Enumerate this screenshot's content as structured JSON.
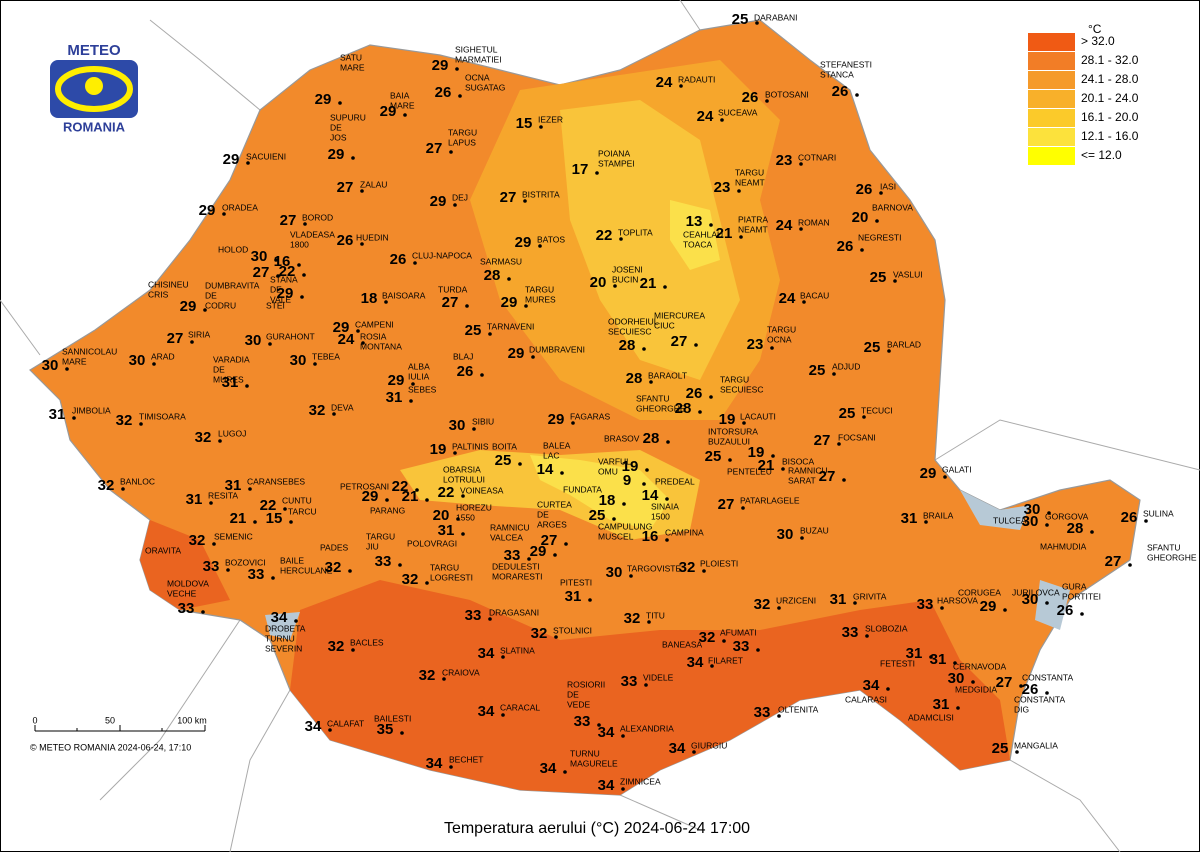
{
  "title": "Temperatura aerului (°C) 2024-06-24 17:00",
  "logo": {
    "top": "METEO",
    "bottom": "ROMANIA"
  },
  "copyright": "© METEO ROMANIA 2024-06-24, 17:10",
  "scale_bar": {
    "labels": [
      "0",
      "50",
      "100 km"
    ]
  },
  "legend": {
    "title": "°C",
    "items": [
      {
        "label": "> 32.0",
        "color": "#f05a14"
      },
      {
        "label": "28.1 - 32.0",
        "color": "#f27d26"
      },
      {
        "label": "24.1 - 28.0",
        "color": "#f59a2a"
      },
      {
        "label": "20.1 - 24.0",
        "color": "#f8b02a"
      },
      {
        "label": "16.1 - 20.0",
        "color": "#fbca2a"
      },
      {
        "label": "12.1 - 16.0",
        "color": "#fce23c"
      },
      {
        "label": "<= 12.0",
        "color": "#ffff00"
      }
    ]
  },
  "stations": [
    {
      "name": [
        "DARABANI"
      ],
      "value": 25
    },
    {
      "name": [
        "STEFANESTI",
        "STANCA"
      ],
      "value": 26
    },
    {
      "name": [
        "RADAUTI"
      ],
      "value": 24
    },
    {
      "name": [
        "BOTOSANI"
      ],
      "value": 26
    },
    {
      "name": [
        "SUCEAVA"
      ],
      "value": 24
    },
    {
      "name": [
        "SIGHETUL",
        "MARMATIEI"
      ],
      "value": 29
    },
    {
      "name": [
        "OCNA",
        "SUGATAG"
      ],
      "value": 26
    },
    {
      "name": [
        "SATU",
        "MARE"
      ],
      "value": 29
    },
    {
      "name": [
        "BAIA",
        "MARE"
      ],
      "value": 29
    },
    {
      "name": [
        "SUPURU",
        "DE",
        "JOS"
      ],
      "value": 29
    },
    {
      "name": [
        "IEZER"
      ],
      "value": 15
    },
    {
      "name": [
        "TARGU",
        "LAPUS"
      ],
      "value": 27
    },
    {
      "name": [
        "SACUIENI"
      ],
      "value": 29
    },
    {
      "name": [
        "COTNARI"
      ],
      "value": 23
    },
    {
      "name": [
        "POIANA",
        "STAMPEI"
      ],
      "value": 17
    },
    {
      "name": [
        "TARGU",
        "NEAMT"
      ],
      "value": 23
    },
    {
      "name": [
        "IASI"
      ],
      "value": 26
    },
    {
      "name": [
        "ZALAU"
      ],
      "value": 27
    },
    {
      "name": [
        "BISTRITA"
      ],
      "value": 27
    },
    {
      "name": [
        "DEJ"
      ],
      "value": 29
    },
    {
      "name": [
        "ORADEA"
      ],
      "value": 29
    },
    {
      "name": [
        "BARNOVA"
      ],
      "value": 20
    },
    {
      "name": [
        "BOROD"
      ],
      "value": 27
    },
    {
      "name": [
        "PIATRA",
        "NEAMT"
      ],
      "value": 21
    },
    {
      "name": [
        "ROMAN"
      ],
      "value": 24
    },
    {
      "name": [
        "TOPLITA"
      ],
      "value": 22
    },
    {
      "name": [
        "CEAHLAU",
        "TOACA"
      ],
      "value": 13
    },
    {
      "name": [
        "VLADEASA",
        "1800"
      ],
      "value": 16
    },
    {
      "name": [
        "HUEDIN"
      ],
      "value": 26
    },
    {
      "name": [
        "CLUJ-NAPOCA"
      ],
      "value": 26
    },
    {
      "name": [
        "BATOS"
      ],
      "value": 29
    },
    {
      "name": [
        "NEGRESTI"
      ],
      "value": 26
    },
    {
      "name": [
        "HOLOD"
      ],
      "value": 30
    },
    {
      "name": [
        "SARMASU"
      ],
      "value": 28
    },
    {
      "name": [
        "STANA",
        "DE",
        "VALE"
      ],
      "value": 22
    },
    {
      "name": [
        "DUMBRAVITA",
        "DE",
        "CODRU"
      ],
      "value": 27
    },
    {
      "name": [
        "STEI"
      ],
      "value": 29
    },
    {
      "name": [
        "VASLUI"
      ],
      "value": 25
    },
    {
      "name": [
        "JOSENI"
      ],
      "value": 21
    },
    {
      "name": [
        "BUCIN"
      ],
      "value": 20
    },
    {
      "name": [
        "CHISINEU",
        "CRIS"
      ],
      "value": 29
    },
    {
      "name": [
        "BAISOARA"
      ],
      "value": 18
    },
    {
      "name": [
        "TURDA"
      ],
      "value": 27
    },
    {
      "name": [
        "TARGU",
        "MURES"
      ],
      "value": 29
    },
    {
      "name": [
        "BACAU"
      ],
      "value": 24
    },
    {
      "name": [
        "CAMPENI"
      ],
      "value": 29
    },
    {
      "name": [
        "ROSIA",
        "MONTANA"
      ],
      "value": 24
    },
    {
      "name": [
        "TARNAVENI"
      ],
      "value": 25
    },
    {
      "name": [
        "ODORHEIUL",
        "SECUIESC"
      ],
      "value": 28
    },
    {
      "name": [
        "MIERCUREA",
        "CIUC"
      ],
      "value": 27
    },
    {
      "name": [
        "SIRIA"
      ],
      "value": 27
    },
    {
      "name": [
        "GURAHONT"
      ],
      "value": 30
    },
    {
      "name": [
        "TARGU",
        "OCNA"
      ],
      "value": 23
    },
    {
      "name": [
        "BARLAD"
      ],
      "value": 25
    },
    {
      "name": [
        "SANNICOLAU",
        "MARE"
      ],
      "value": 30
    },
    {
      "name": [
        "ARAD"
      ],
      "value": 30
    },
    {
      "name": [
        "VARADIA",
        "DE",
        "MURES"
      ],
      "value": 31
    },
    {
      "name": [
        "TEBEA"
      ],
      "value": 30
    },
    {
      "name": [
        "DUMBRAVENI"
      ],
      "value": 29
    },
    {
      "name": [
        "BLAJ"
      ],
      "value": 26
    },
    {
      "name": [
        "ALBA",
        "IULIA"
      ],
      "value": 29
    },
    {
      "name": [
        "SEBES"
      ],
      "value": 31
    },
    {
      "name": [
        "ADJUD"
      ],
      "value": 25
    },
    {
      "name": [
        "BARAOLT"
      ],
      "value": 28
    },
    {
      "name": [
        "TARGU",
        "SECUIESC"
      ],
      "value": 26
    },
    {
      "name": [
        "JIMBOLIA"
      ],
      "value": 31
    },
    {
      "name": [
        "TIMISOARA"
      ],
      "value": 32
    },
    {
      "name": [
        "DEVA"
      ],
      "value": 32
    },
    {
      "name": [
        "SIBIU"
      ],
      "value": 30
    },
    {
      "name": [
        "FAGARAS"
      ],
      "value": 29
    },
    {
      "name": [
        "SFANTU",
        "GHEORGHE"
      ],
      "value": 28
    },
    {
      "name": [
        "LACAUTI"
      ],
      "value": 19
    },
    {
      "name": [
        "TECUCI"
      ],
      "value": 25
    },
    {
      "name": [
        "LUGOJ"
      ],
      "value": 32
    },
    {
      "name": [
        "BRASOV"
      ],
      "value": 28
    },
    {
      "name": [
        "INTORSURA",
        "BUZAULUI"
      ],
      "value": 25
    },
    {
      "name": [
        "PALTINIS"
      ],
      "value": 19
    },
    {
      "name": [
        "BOITA"
      ],
      "value": 25
    },
    {
      "name": [
        "BALEA",
        "LAC"
      ],
      "value": 14
    },
    {
      "name": [
        "PENTELEU"
      ],
      "value": 19
    },
    {
      "name": [
        "BISOCA"
      ],
      "value": 21
    },
    {
      "name": [
        "FOCSANI"
      ],
      "value": 27
    },
    {
      "name": [
        "GALATI"
      ],
      "value": 29
    },
    {
      "name": [
        "RAMNICU",
        "SARAT"
      ],
      "value": 27
    },
    {
      "name": [
        "PREDEAL"
      ],
      "value": 19
    },
    {
      "name": [
        "VARFUL",
        "OMU"
      ],
      "value": 9
    },
    {
      "name": [
        "FUNDATA"
      ],
      "value": 18
    },
    {
      "name": [
        "SINAIA",
        "1500"
      ],
      "value": 14
    },
    {
      "name": [
        "BANLOC"
      ],
      "value": 32
    },
    {
      "name": [
        "CARANSEBES"
      ],
      "value": 31
    },
    {
      "name": [
        "RESITA"
      ],
      "value": 31
    },
    {
      "name": [
        "OBARSIA",
        "LOTRULUI"
      ],
      "value": 22
    },
    {
      "name": [
        "PETROSANI"
      ],
      "value": 29
    },
    {
      "name": [
        "PARANG"
      ],
      "value": 21
    },
    {
      "name": [
        "VOINEASA"
      ],
      "value": 22
    },
    {
      "name": [
        "PATARLAGELE"
      ],
      "value": 27
    },
    {
      "name": [
        "CUNTU"
      ],
      "value": 22
    },
    {
      "name": [
        "TARCU"
      ],
      "value": 15
    },
    {
      "name": [
        "HOREZU",
        "1550"
      ],
      "value": 20
    },
    {
      "name": [
        "CAMPULUNG",
        "MUSCEL"
      ],
      "value": 25
    },
    {
      "name": [
        "CURTEA",
        "DE",
        "ARGES"
      ],
      "value": 27
    },
    {
      "name": [
        "CAMPINA"
      ],
      "value": 16
    },
    {
      "name": [
        "SEMENIC"
      ],
      "value": 21
    },
    {
      "name": [
        "ORAVITA"
      ],
      "value": 32
    },
    {
      "name": [
        "BOZOVICI"
      ],
      "value": 33
    },
    {
      "name": [
        "PADES"
      ],
      "value": 32
    },
    {
      "name": [
        "TARGU",
        "JIU"
      ],
      "value": 33
    },
    {
      "name": [
        "POLOVRAGI"
      ],
      "value": 31
    },
    {
      "name": [
        "RAMNICU",
        "VALCEA"
      ],
      "value": 33
    },
    {
      "name": [
        "DEDULESTI",
        "MORARESTI"
      ],
      "value": 29
    },
    {
      "name": [
        "BUZAU"
      ],
      "value": 30
    },
    {
      "name": [
        "BRAILA"
      ],
      "value": 31
    },
    {
      "name": [
        "TULCEA"
      ],
      "value": 30
    },
    {
      "name": [
        "GORGOVA"
      ],
      "value": 30
    },
    {
      "name": [
        "MAHMUDIA"
      ],
      "value": 28
    },
    {
      "name": [
        "SULINA"
      ],
      "value": 26
    },
    {
      "name": [
        "SFANTU",
        "GHEORGHE"
      ],
      "value": 27
    },
    {
      "name": [
        "MOLDOVA",
        "VECHE"
      ],
      "value": 33
    },
    {
      "name": [
        "BAILE",
        "HERCULANE"
      ],
      "value": 33
    },
    {
      "name": [
        "TARGU",
        "LOGRESTI"
      ],
      "value": 32
    },
    {
      "name": [
        "PITESTI"
      ],
      "value": 31
    },
    {
      "name": [
        "TARGOVISTE"
      ],
      "value": 30
    },
    {
      "name": [
        "PLOIESTI"
      ],
      "value": 32
    },
    {
      "name": [
        "DROBETA",
        "TURNU",
        "SEVERIN"
      ],
      "value": 34
    },
    {
      "name": [
        "DRAGASANI"
      ],
      "value": 33
    },
    {
      "name": [
        "TITU"
      ],
      "value": 32
    },
    {
      "name": [
        "URZICENI"
      ],
      "value": 32
    },
    {
      "name": [
        "GRIVITA"
      ],
      "value": 31
    },
    {
      "name": [
        "HARSOVA"
      ],
      "value": 33
    },
    {
      "name": [
        "CORUGEA"
      ],
      "value": 29
    },
    {
      "name": [
        "JURILOVCA"
      ],
      "value": 30
    },
    {
      "name": [
        "GURA",
        "PORTITEI"
      ],
      "value": 26
    },
    {
      "name": [
        "STOLNICI"
      ],
      "value": 32
    },
    {
      "name": [
        "AFUMATI"
      ],
      "value": 33
    },
    {
      "name": [
        "BANEASA"
      ],
      "value": 32
    },
    {
      "name": [
        "SLOBOZIA"
      ],
      "value": 33
    },
    {
      "name": [
        "BACLES"
      ],
      "value": 32
    },
    {
      "name": [
        "SLATINA"
      ],
      "value": 34
    },
    {
      "name": [
        "FILARET"
      ],
      "value": 34
    },
    {
      "name": [
        "FETESTI"
      ],
      "value": 31
    },
    {
      "name": [
        "CERNAVODA"
      ],
      "value": 31
    },
    {
      "name": [
        "CRAIOVA"
      ],
      "value": 32
    },
    {
      "name": [
        "VIDELE"
      ],
      "value": 33
    },
    {
      "name": [
        "CONSTANTA"
      ],
      "value": 27
    },
    {
      "name": [
        "CONSTANTA",
        "DIG"
      ],
      "value": 26
    },
    {
      "name": [
        "MEDGIDIA"
      ],
      "value": 30
    },
    {
      "name": [
        "CALARASI"
      ],
      "value": 34
    },
    {
      "name": [
        "ADAMCLISI"
      ],
      "value": 31
    },
    {
      "name": [
        "CARACAL"
      ],
      "value": 34
    },
    {
      "name": [
        "ROSIORII",
        "DE",
        "VEDE"
      ],
      "value": 33
    },
    {
      "name": [
        "OLTENITA"
      ],
      "value": 33
    },
    {
      "name": [
        "ALEXANDRIA"
      ],
      "value": 34
    },
    {
      "name": [
        "CALAFAT"
      ],
      "value": 34
    },
    {
      "name": [
        "BAILESTI"
      ],
      "value": 35
    },
    {
      "name": [
        "GIURGIU"
      ],
      "value": 34
    },
    {
      "name": [
        "MANGALIA"
      ],
      "value": 25
    },
    {
      "name": [
        "BECHET"
      ],
      "value": 34
    },
    {
      "name": [
        "TURNU",
        "MAGURELE"
      ],
      "value": 34
    },
    {
      "name": [
        "ZIMNICEA"
      ],
      "value": 34
    }
  ]
}
